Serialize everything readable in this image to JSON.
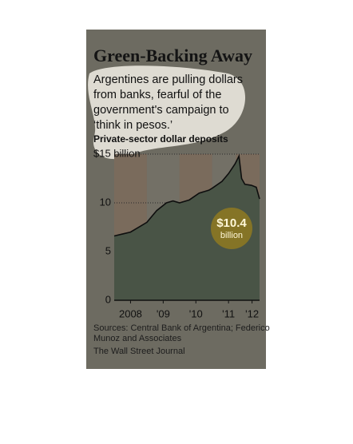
{
  "chart_data": {
    "type": "area",
    "title": "Green-Backing Away",
    "subtitle_lines": [
      "Argentines are pulling dollars",
      "from banks, fearful of the",
      "government's campaign to",
      "‘think in pesos.’"
    ],
    "y_axis_title": "Private-sector dollar deposits",
    "x": [
      2008.0,
      2008.25,
      2008.5,
      2008.8,
      2009.0,
      2009.3,
      2009.6,
      2009.8,
      2010.0,
      2010.3,
      2010.6,
      2010.9,
      2011.0,
      2011.3,
      2011.5,
      2011.7,
      2011.82,
      2011.9,
      2012.0,
      2012.2,
      2012.35,
      2012.45
    ],
    "series": [
      {
        "name": "Private-sector dollar deposits",
        "color": "#495446",
        "line_color": "#0e0e0e",
        "values": [
          6.6,
          6.8,
          7.0,
          7.6,
          8.0,
          9.2,
          10.0,
          10.2,
          10.0,
          10.3,
          11.0,
          11.3,
          11.5,
          12.2,
          13.0,
          14.0,
          14.8,
          12.5,
          11.9,
          11.8,
          11.6,
          10.4
        ]
      }
    ],
    "xlim": [
      2008,
      2012.45
    ],
    "xticks": [
      {
        "value": 2008.5,
        "label": "2008"
      },
      {
        "value": 2009.5,
        "label": "'09"
      },
      {
        "value": 2010.5,
        "label": "'10"
      },
      {
        "value": 2011.5,
        "label": "'11"
      },
      {
        "value": 2012.22,
        "label": "'12"
      }
    ],
    "ylim": [
      0,
      15
    ],
    "yticks": [
      0,
      5,
      10,
      {
        "value": 15,
        "label": "$15 billion"
      }
    ],
    "annotation": {
      "label": "$10.4",
      "sub": "billion"
    },
    "sources_lines": [
      "Sources: Central Bank of Argentina; Federico",
      "Munoz and Associates"
    ],
    "credit": "The Wall Street Journal"
  }
}
